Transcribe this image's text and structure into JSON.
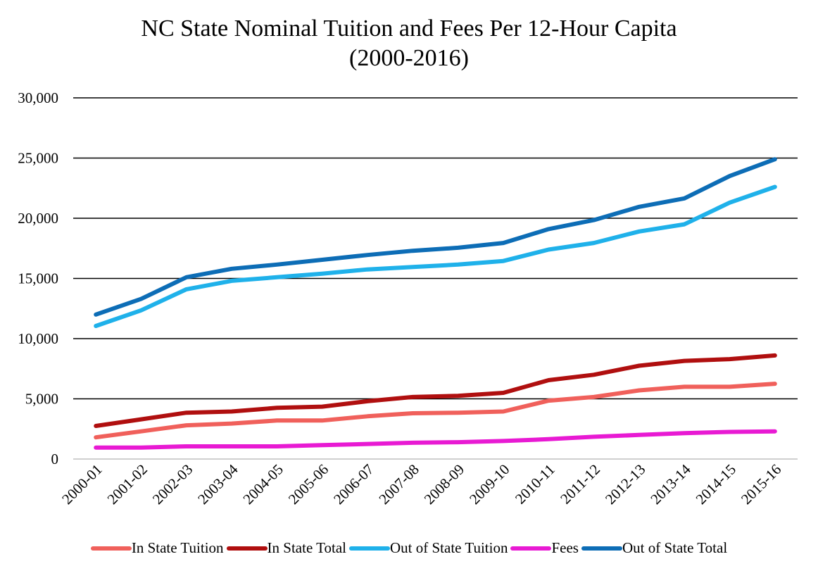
{
  "title_line1": "NC State Nominal Tuition and Fees Per 12-Hour Capita",
  "title_line2": "(2000-2016)",
  "chart_data": {
    "type": "line",
    "title": "NC State Nominal Tuition and Fees Per 12-Hour Capita (2000-2016)",
    "xlabel": "",
    "ylabel": "",
    "ylim": [
      0,
      30000
    ],
    "yticks": [
      0,
      5000,
      10000,
      15000,
      20000,
      25000,
      30000
    ],
    "ytick_labels": [
      "0",
      "5,000",
      "10,000",
      "15,000",
      "20,000",
      "25,000",
      "30,000"
    ],
    "grid": true,
    "legend_position": "bottom",
    "categories": [
      "2000-01",
      "2001-02",
      "2002-03",
      "2003-04",
      "2004-05",
      "2005-06",
      "2006-07",
      "2007-08",
      "2008-09",
      "2009-10",
      "2010-11",
      "2011-12",
      "2012-13",
      "2013-14",
      "2014-15",
      "2015-16"
    ],
    "series": [
      {
        "name": "In State Tuition",
        "color": "#f0605b",
        "values": [
          1800,
          2300,
          2800,
          2950,
          3200,
          3200,
          3550,
          3800,
          3850,
          3950,
          4850,
          5150,
          5700,
          6000,
          6000,
          6250
        ]
      },
      {
        "name": "In State Total",
        "color": "#b00f0f",
        "values": [
          2750,
          3300,
          3850,
          3950,
          4250,
          4350,
          4800,
          5150,
          5250,
          5500,
          6550,
          7000,
          7750,
          8150,
          8300,
          8600
        ]
      },
      {
        "name": "Out of State Tuition",
        "color": "#1fb1ea",
        "values": [
          11050,
          12350,
          14100,
          14800,
          15100,
          15400,
          15750,
          15950,
          16150,
          16450,
          17400,
          17950,
          18900,
          19500,
          21300,
          22600
        ]
      },
      {
        "name": "Fees",
        "color": "#e81ad3",
        "values": [
          950,
          950,
          1050,
          1050,
          1050,
          1150,
          1250,
          1350,
          1400,
          1500,
          1650,
          1850,
          2000,
          2150,
          2250,
          2300
        ]
      },
      {
        "name": "Out of State Total",
        "color": "#0d6db6",
        "values": [
          12000,
          13300,
          15100,
          15800,
          16150,
          16550,
          16950,
          17300,
          17550,
          17950,
          19100,
          19850,
          20950,
          21650,
          23500,
          24900
        ]
      }
    ]
  }
}
